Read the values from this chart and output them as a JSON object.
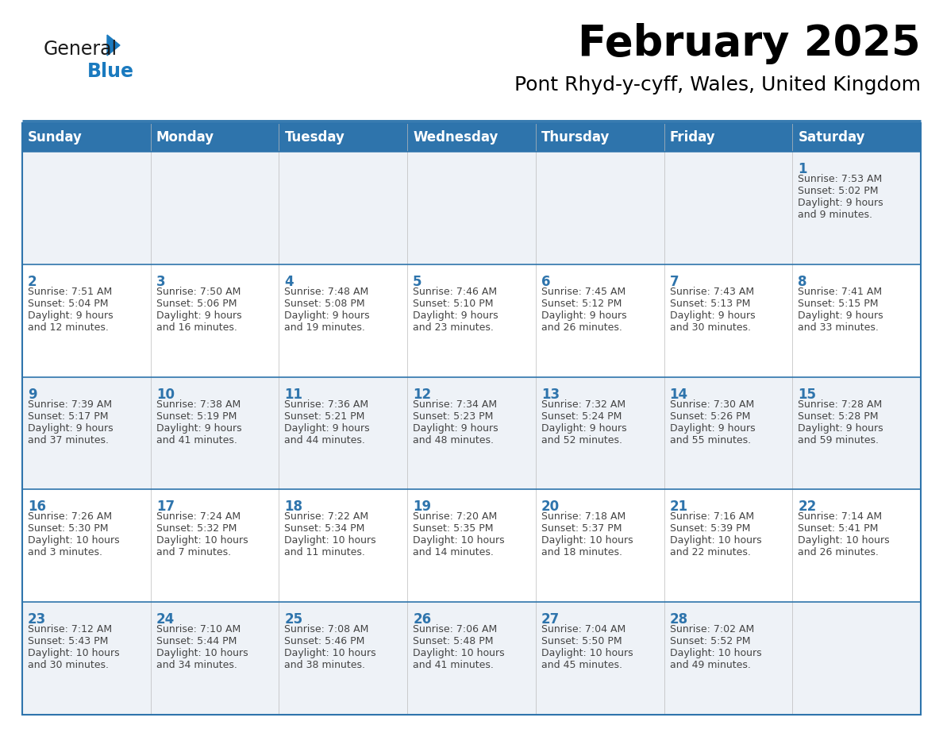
{
  "title": "February 2025",
  "subtitle": "Pont Rhyd-y-cyff, Wales, United Kingdom",
  "header_bg": "#2E74AC",
  "header_text": "#FFFFFF",
  "title_color": "#000000",
  "subtitle_color": "#000000",
  "row_bg_white": "#FFFFFF",
  "row_bg_gray": "#EEF2F7",
  "cell_text_color": "#444444",
  "day_number_color": "#2E74AC",
  "separator_color": "#2E74AC",
  "days_of_week": [
    "Sunday",
    "Monday",
    "Tuesday",
    "Wednesday",
    "Thursday",
    "Friday",
    "Saturday"
  ],
  "weeks": [
    [
      {
        "day": null,
        "info": null
      },
      {
        "day": null,
        "info": null
      },
      {
        "day": null,
        "info": null
      },
      {
        "day": null,
        "info": null
      },
      {
        "day": null,
        "info": null
      },
      {
        "day": null,
        "info": null
      },
      {
        "day": "1",
        "info": "Sunrise: 7:53 AM\nSunset: 5:02 PM\nDaylight: 9 hours\nand 9 minutes."
      }
    ],
    [
      {
        "day": "2",
        "info": "Sunrise: 7:51 AM\nSunset: 5:04 PM\nDaylight: 9 hours\nand 12 minutes."
      },
      {
        "day": "3",
        "info": "Sunrise: 7:50 AM\nSunset: 5:06 PM\nDaylight: 9 hours\nand 16 minutes."
      },
      {
        "day": "4",
        "info": "Sunrise: 7:48 AM\nSunset: 5:08 PM\nDaylight: 9 hours\nand 19 minutes."
      },
      {
        "day": "5",
        "info": "Sunrise: 7:46 AM\nSunset: 5:10 PM\nDaylight: 9 hours\nand 23 minutes."
      },
      {
        "day": "6",
        "info": "Sunrise: 7:45 AM\nSunset: 5:12 PM\nDaylight: 9 hours\nand 26 minutes."
      },
      {
        "day": "7",
        "info": "Sunrise: 7:43 AM\nSunset: 5:13 PM\nDaylight: 9 hours\nand 30 minutes."
      },
      {
        "day": "8",
        "info": "Sunrise: 7:41 AM\nSunset: 5:15 PM\nDaylight: 9 hours\nand 33 minutes."
      }
    ],
    [
      {
        "day": "9",
        "info": "Sunrise: 7:39 AM\nSunset: 5:17 PM\nDaylight: 9 hours\nand 37 minutes."
      },
      {
        "day": "10",
        "info": "Sunrise: 7:38 AM\nSunset: 5:19 PM\nDaylight: 9 hours\nand 41 minutes."
      },
      {
        "day": "11",
        "info": "Sunrise: 7:36 AM\nSunset: 5:21 PM\nDaylight: 9 hours\nand 44 minutes."
      },
      {
        "day": "12",
        "info": "Sunrise: 7:34 AM\nSunset: 5:23 PM\nDaylight: 9 hours\nand 48 minutes."
      },
      {
        "day": "13",
        "info": "Sunrise: 7:32 AM\nSunset: 5:24 PM\nDaylight: 9 hours\nand 52 minutes."
      },
      {
        "day": "14",
        "info": "Sunrise: 7:30 AM\nSunset: 5:26 PM\nDaylight: 9 hours\nand 55 minutes."
      },
      {
        "day": "15",
        "info": "Sunrise: 7:28 AM\nSunset: 5:28 PM\nDaylight: 9 hours\nand 59 minutes."
      }
    ],
    [
      {
        "day": "16",
        "info": "Sunrise: 7:26 AM\nSunset: 5:30 PM\nDaylight: 10 hours\nand 3 minutes."
      },
      {
        "day": "17",
        "info": "Sunrise: 7:24 AM\nSunset: 5:32 PM\nDaylight: 10 hours\nand 7 minutes."
      },
      {
        "day": "18",
        "info": "Sunrise: 7:22 AM\nSunset: 5:34 PM\nDaylight: 10 hours\nand 11 minutes."
      },
      {
        "day": "19",
        "info": "Sunrise: 7:20 AM\nSunset: 5:35 PM\nDaylight: 10 hours\nand 14 minutes."
      },
      {
        "day": "20",
        "info": "Sunrise: 7:18 AM\nSunset: 5:37 PM\nDaylight: 10 hours\nand 18 minutes."
      },
      {
        "day": "21",
        "info": "Sunrise: 7:16 AM\nSunset: 5:39 PM\nDaylight: 10 hours\nand 22 minutes."
      },
      {
        "day": "22",
        "info": "Sunrise: 7:14 AM\nSunset: 5:41 PM\nDaylight: 10 hours\nand 26 minutes."
      }
    ],
    [
      {
        "day": "23",
        "info": "Sunrise: 7:12 AM\nSunset: 5:43 PM\nDaylight: 10 hours\nand 30 minutes."
      },
      {
        "day": "24",
        "info": "Sunrise: 7:10 AM\nSunset: 5:44 PM\nDaylight: 10 hours\nand 34 minutes."
      },
      {
        "day": "25",
        "info": "Sunrise: 7:08 AM\nSunset: 5:46 PM\nDaylight: 10 hours\nand 38 minutes."
      },
      {
        "day": "26",
        "info": "Sunrise: 7:06 AM\nSunset: 5:48 PM\nDaylight: 10 hours\nand 41 minutes."
      },
      {
        "day": "27",
        "info": "Sunrise: 7:04 AM\nSunset: 5:50 PM\nDaylight: 10 hours\nand 45 minutes."
      },
      {
        "day": "28",
        "info": "Sunrise: 7:02 AM\nSunset: 5:52 PM\nDaylight: 10 hours\nand 49 minutes."
      },
      {
        "day": null,
        "info": null
      }
    ]
  ],
  "logo_color_general": "#1a1a1a",
  "logo_color_blue": "#1a7abf"
}
